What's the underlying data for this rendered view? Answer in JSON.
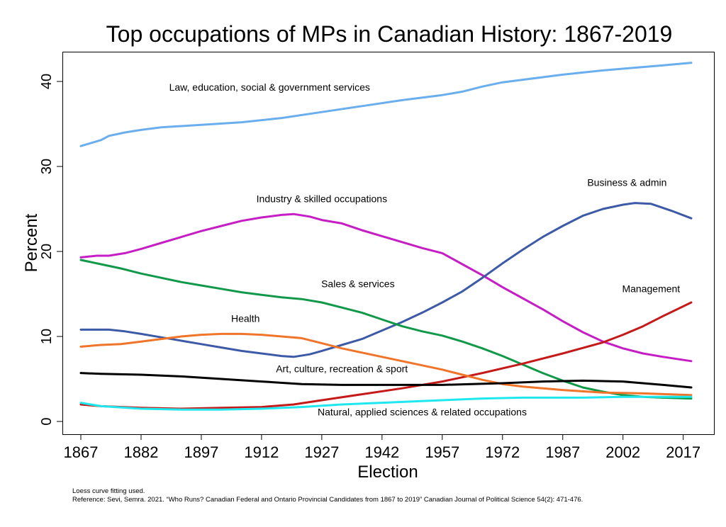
{
  "chart_data": {
    "type": "line",
    "title": "Top occupations of MPs in Canadian History: 1867-2019",
    "xlabel": "Election",
    "ylabel": "Percent",
    "xlim": [
      1867,
      2019
    ],
    "ylim": [
      -1.5,
      43.5
    ],
    "xticks": [
      1867,
      1882,
      1897,
      1912,
      1927,
      1942,
      1957,
      1972,
      1987,
      2002,
      2017
    ],
    "yticks": [
      0,
      10,
      20,
      30,
      40
    ],
    "grid": false,
    "legend": "none (labels placed next to lines)",
    "series": [
      {
        "name": "Law, education, social & government services",
        "color": "#6aaeee",
        "label_pos": [
          1914,
          38.9
        ],
        "points": [
          [
            1867,
            32.4
          ],
          [
            1872,
            33.1
          ],
          [
            1874,
            33.6
          ],
          [
            1878,
            34.0
          ],
          [
            1882,
            34.3
          ],
          [
            1887,
            34.6
          ],
          [
            1897,
            34.9
          ],
          [
            1907,
            35.2
          ],
          [
            1917,
            35.7
          ],
          [
            1927,
            36.4
          ],
          [
            1937,
            37.1
          ],
          [
            1947,
            37.8
          ],
          [
            1957,
            38.4
          ],
          [
            1962,
            38.8
          ],
          [
            1967,
            39.4
          ],
          [
            1972,
            39.9
          ],
          [
            1977,
            40.2
          ],
          [
            1987,
            40.8
          ],
          [
            1997,
            41.3
          ],
          [
            2002,
            41.5
          ],
          [
            2007,
            41.7
          ],
          [
            2012,
            41.9
          ],
          [
            2019,
            42.2
          ]
        ]
      },
      {
        "name": "Industry & skilled occupations",
        "color": "#c41ec4",
        "label_pos": [
          1927,
          25.8
        ],
        "points": [
          [
            1867,
            19.3
          ],
          [
            1871,
            19.5
          ],
          [
            1874,
            19.5
          ],
          [
            1878,
            19.8
          ],
          [
            1882,
            20.3
          ],
          [
            1887,
            21.0
          ],
          [
            1892,
            21.7
          ],
          [
            1897,
            22.4
          ],
          [
            1902,
            23.0
          ],
          [
            1907,
            23.6
          ],
          [
            1912,
            24.0
          ],
          [
            1917,
            24.3
          ],
          [
            1920,
            24.4
          ],
          [
            1924,
            24.1
          ],
          [
            1927,
            23.7
          ],
          [
            1932,
            23.3
          ],
          [
            1937,
            22.5
          ],
          [
            1942,
            21.8
          ],
          [
            1947,
            21.1
          ],
          [
            1952,
            20.4
          ],
          [
            1957,
            19.8
          ],
          [
            1962,
            18.5
          ],
          [
            1967,
            17.2
          ],
          [
            1972,
            15.8
          ],
          [
            1977,
            14.5
          ],
          [
            1982,
            13.2
          ],
          [
            1987,
            11.8
          ],
          [
            1992,
            10.5
          ],
          [
            1997,
            9.4
          ],
          [
            2002,
            8.6
          ],
          [
            2007,
            8.0
          ],
          [
            2012,
            7.6
          ],
          [
            2019,
            7.1
          ]
        ]
      },
      {
        "name": "Business & admin",
        "color": "#3d5aa6",
        "label_pos": [
          2003,
          27.7
        ],
        "points": [
          [
            1867,
            10.8
          ],
          [
            1874,
            10.8
          ],
          [
            1878,
            10.6
          ],
          [
            1882,
            10.3
          ],
          [
            1887,
            9.9
          ],
          [
            1892,
            9.5
          ],
          [
            1897,
            9.1
          ],
          [
            1902,
            8.7
          ],
          [
            1907,
            8.3
          ],
          [
            1912,
            8.0
          ],
          [
            1917,
            7.7
          ],
          [
            1920,
            7.6
          ],
          [
            1924,
            7.9
          ],
          [
            1927,
            8.3
          ],
          [
            1932,
            9.0
          ],
          [
            1937,
            9.7
          ],
          [
            1942,
            10.7
          ],
          [
            1947,
            11.7
          ],
          [
            1952,
            12.8
          ],
          [
            1957,
            14.0
          ],
          [
            1962,
            15.3
          ],
          [
            1967,
            16.9
          ],
          [
            1972,
            18.6
          ],
          [
            1977,
            20.2
          ],
          [
            1982,
            21.7
          ],
          [
            1987,
            23.0
          ],
          [
            1992,
            24.2
          ],
          [
            1997,
            25.0
          ],
          [
            2002,
            25.5
          ],
          [
            2005,
            25.7
          ],
          [
            2009,
            25.6
          ],
          [
            2014,
            24.8
          ],
          [
            2019,
            23.9
          ]
        ]
      },
      {
        "name": "Sales & services",
        "color": "#119848",
        "label_pos": [
          1936,
          15.8
        ],
        "points": [
          [
            1867,
            19.0
          ],
          [
            1872,
            18.5
          ],
          [
            1877,
            18.0
          ],
          [
            1882,
            17.4
          ],
          [
            1887,
            16.9
          ],
          [
            1892,
            16.4
          ],
          [
            1897,
            16.0
          ],
          [
            1902,
            15.6
          ],
          [
            1907,
            15.2
          ],
          [
            1912,
            14.9
          ],
          [
            1917,
            14.6
          ],
          [
            1922,
            14.4
          ],
          [
            1927,
            14.0
          ],
          [
            1932,
            13.4
          ],
          [
            1937,
            12.8
          ],
          [
            1942,
            12.0
          ],
          [
            1947,
            11.2
          ],
          [
            1952,
            10.6
          ],
          [
            1957,
            10.1
          ],
          [
            1962,
            9.4
          ],
          [
            1967,
            8.6
          ],
          [
            1972,
            7.7
          ],
          [
            1977,
            6.7
          ],
          [
            1982,
            5.7
          ],
          [
            1987,
            4.8
          ],
          [
            1992,
            4.0
          ],
          [
            1997,
            3.5
          ],
          [
            2002,
            3.1
          ],
          [
            2007,
            2.9
          ],
          [
            2012,
            2.8
          ],
          [
            2019,
            2.7
          ]
        ]
      },
      {
        "name": "Management",
        "color": "#c41a1a",
        "label_pos": [
          2009,
          15.2
        ],
        "points": [
          [
            1867,
            2.0
          ],
          [
            1872,
            1.8
          ],
          [
            1882,
            1.6
          ],
          [
            1892,
            1.5
          ],
          [
            1902,
            1.6
          ],
          [
            1912,
            1.7
          ],
          [
            1920,
            2.0
          ],
          [
            1927,
            2.5
          ],
          [
            1937,
            3.2
          ],
          [
            1947,
            3.9
          ],
          [
            1957,
            4.7
          ],
          [
            1967,
            5.7
          ],
          [
            1977,
            6.8
          ],
          [
            1987,
            8.0
          ],
          [
            1997,
            9.3
          ],
          [
            2002,
            10.2
          ],
          [
            2007,
            11.2
          ],
          [
            2012,
            12.4
          ],
          [
            2019,
            14.0
          ]
        ]
      },
      {
        "name": "Health",
        "color": "#f0742a",
        "label_pos": [
          1908,
          11.7
        ],
        "points": [
          [
            1867,
            8.8
          ],
          [
            1872,
            9.0
          ],
          [
            1877,
            9.1
          ],
          [
            1882,
            9.4
          ],
          [
            1887,
            9.7
          ],
          [
            1892,
            10.0
          ],
          [
            1897,
            10.2
          ],
          [
            1902,
            10.3
          ],
          [
            1907,
            10.3
          ],
          [
            1912,
            10.2
          ],
          [
            1917,
            10.0
          ],
          [
            1922,
            9.8
          ],
          [
            1927,
            9.2
          ],
          [
            1932,
            8.6
          ],
          [
            1937,
            8.1
          ],
          [
            1942,
            7.6
          ],
          [
            1947,
            7.1
          ],
          [
            1952,
            6.6
          ],
          [
            1957,
            6.1
          ],
          [
            1962,
            5.5
          ],
          [
            1967,
            4.9
          ],
          [
            1972,
            4.4
          ],
          [
            1977,
            4.1
          ],
          [
            1987,
            3.7
          ],
          [
            1997,
            3.4
          ],
          [
            2007,
            3.3
          ],
          [
            2019,
            3.1
          ]
        ]
      },
      {
        "name": "Art, culture, recreation & sport",
        "color": "#000000",
        "label_pos": [
          1932,
          5.8
        ],
        "points": [
          [
            1867,
            5.7
          ],
          [
            1872,
            5.6
          ],
          [
            1882,
            5.5
          ],
          [
            1892,
            5.3
          ],
          [
            1902,
            5.0
          ],
          [
            1912,
            4.7
          ],
          [
            1922,
            4.4
          ],
          [
            1932,
            4.3
          ],
          [
            1942,
            4.3
          ],
          [
            1957,
            4.3
          ],
          [
            1972,
            4.5
          ],
          [
            1982,
            4.7
          ],
          [
            1992,
            4.8
          ],
          [
            2002,
            4.7
          ],
          [
            2012,
            4.3
          ],
          [
            2019,
            4.0
          ]
        ]
      },
      {
        "name": "Natural, applied sciences & related occupations",
        "color": "#1ee8ee",
        "label_pos": [
          1952,
          0.7
        ],
        "points": [
          [
            1867,
            2.2
          ],
          [
            1872,
            1.8
          ],
          [
            1882,
            1.5
          ],
          [
            1892,
            1.4
          ],
          [
            1902,
            1.4
          ],
          [
            1912,
            1.5
          ],
          [
            1922,
            1.7
          ],
          [
            1932,
            2.0
          ],
          [
            1942,
            2.2
          ],
          [
            1957,
            2.5
          ],
          [
            1967,
            2.7
          ],
          [
            1977,
            2.8
          ],
          [
            1992,
            2.8
          ],
          [
            2002,
            2.9
          ],
          [
            2019,
            2.9
          ]
        ]
      }
    ]
  },
  "notes": {
    "method": "Loess curve fitting used.",
    "reference": "Reference: Sevi, Semra. 2021. “Who Runs? Canadian Federal and Ontario Provincial Candidates from 1867 to 2019” Canadian Journal of Political Science 54(2): 471-476."
  }
}
